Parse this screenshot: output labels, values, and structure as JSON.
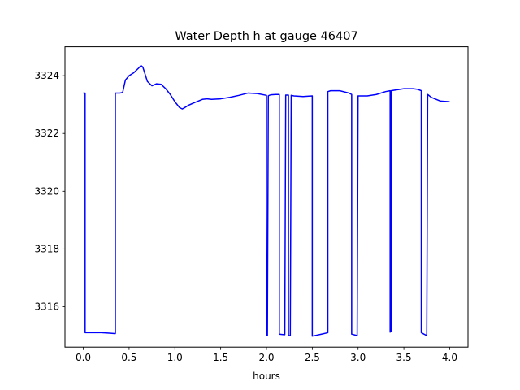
{
  "chart_data": {
    "type": "line",
    "title": "Water Depth h at gauge 46407",
    "xlabel": "hours",
    "ylabel": "",
    "xlim": [
      -0.2,
      4.2
    ],
    "ylim": [
      3314.6,
      3325.0
    ],
    "xticks": [
      0.0,
      0.5,
      1.0,
      1.5,
      2.0,
      2.5,
      3.0,
      3.5,
      4.0
    ],
    "xtick_labels": [
      "0.0",
      "0.5",
      "1.0",
      "1.5",
      "2.0",
      "2.5",
      "3.0",
      "3.5",
      "4.0"
    ],
    "yticks": [
      3316,
      3318,
      3320,
      3322,
      3324
    ],
    "ytick_labels": [
      "3316",
      "3318",
      "3320",
      "3322",
      "3324"
    ],
    "grid": false,
    "line_color": "#0000ff",
    "series": [
      {
        "x": [
          0.0,
          0.02,
          0.02,
          0.1,
          0.2,
          0.3,
          0.34,
          0.35,
          0.35,
          0.4,
          0.43,
          0.46,
          0.5,
          0.55,
          0.6,
          0.63,
          0.65,
          0.67,
          0.7,
          0.75,
          0.8,
          0.85,
          0.9,
          0.95,
          1.0,
          1.05,
          1.08,
          1.1,
          1.15,
          1.2,
          1.3,
          1.35,
          1.4,
          1.5,
          1.6,
          1.7,
          1.8,
          1.9,
          2.0,
          2.0,
          2.01,
          2.02,
          2.03,
          2.05,
          2.1,
          2.14,
          2.14,
          2.19,
          2.2,
          2.21,
          2.24,
          2.24,
          2.25,
          2.26,
          2.27,
          2.27,
          2.3,
          2.4,
          2.5,
          2.5,
          2.6,
          2.67,
          2.67,
          2.7,
          2.8,
          2.9,
          2.93,
          2.93,
          2.99,
          3.0,
          3.1,
          3.2,
          3.3,
          3.35,
          3.35,
          3.36,
          3.36,
          3.4,
          3.5,
          3.6,
          3.65,
          3.69,
          3.69,
          3.75,
          3.76,
          3.8,
          3.9,
          4.0
        ],
        "y": [
          3323.4,
          3323.4,
          3315.1,
          3315.1,
          3315.1,
          3315.08,
          3315.07,
          3315.07,
          3323.4,
          3323.4,
          3323.42,
          3323.85,
          3324.0,
          3324.1,
          3324.25,
          3324.35,
          3324.3,
          3324.1,
          3323.8,
          3323.65,
          3323.72,
          3323.7,
          3323.55,
          3323.35,
          3323.1,
          3322.9,
          3322.85,
          3322.88,
          3322.98,
          3323.05,
          3323.18,
          3323.2,
          3323.18,
          3323.2,
          3323.25,
          3323.32,
          3323.4,
          3323.38,
          3323.32,
          3315.0,
          3315.0,
          3323.3,
          3323.32,
          3323.34,
          3323.35,
          3323.35,
          3315.05,
          3315.03,
          3315.03,
          3323.33,
          3323.33,
          3315.0,
          3315.0,
          3315.0,
          3323.32,
          3323.32,
          3323.3,
          3323.28,
          3323.3,
          3314.98,
          3315.05,
          3315.1,
          3323.45,
          3323.48,
          3323.48,
          3323.4,
          3323.35,
          3315.05,
          3315.0,
          3323.3,
          3323.3,
          3323.35,
          3323.45,
          3323.48,
          3315.12,
          3315.15,
          3323.48,
          3323.5,
          3323.55,
          3323.55,
          3323.53,
          3323.48,
          3315.1,
          3315.0,
          3323.35,
          3323.25,
          3323.12,
          3323.1
        ]
      }
    ]
  }
}
